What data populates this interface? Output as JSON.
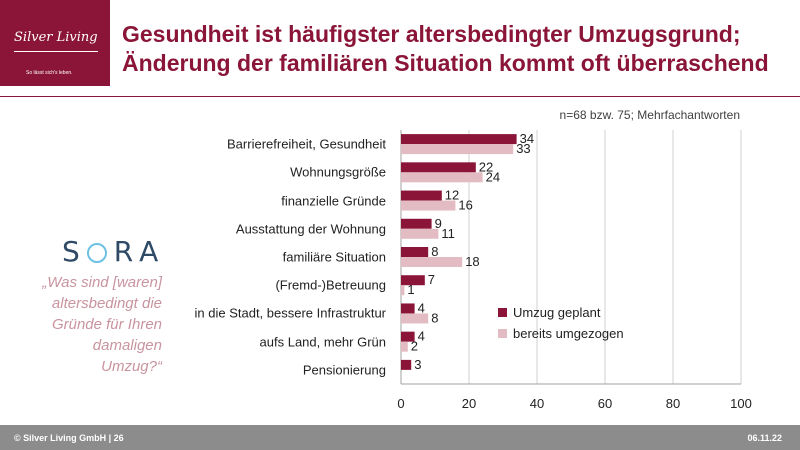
{
  "logo": {
    "brand": "Silver Living",
    "tagline": "So lässt sich's leben.",
    "color": "#8a1538"
  },
  "title": {
    "line1": "Gesundheit ist häufigster altersbedingter Umzugsgrund;",
    "line2": "Änderung der familiären Situation kommt oft überraschend"
  },
  "sample_note": "n=68 bzw. 75; Mehrfachantworten",
  "sora": {
    "logo_text_s": "S",
    "logo_text_rest": "RA"
  },
  "question": "„Was sind [waren] altersbedingt die Gründe für Ihren damaligen Umzug?“",
  "chart_data": {
    "type": "bar",
    "orientation": "horizontal",
    "categories": [
      "Barrierefreiheit, Gesundheit",
      "Wohnungsgröße",
      "finanzielle Gründe",
      "Ausstattung der Wohnung",
      "familiäre Situation",
      "(Fremd-)Betreuung",
      "in die Stadt, bessere Infrastruktur",
      "aufs Land, mehr Grün",
      "Pensionierung"
    ],
    "series": [
      {
        "name": "Umzug geplant",
        "color": "#8a1538",
        "values": [
          34,
          22,
          12,
          9,
          8,
          7,
          4,
          4,
          3
        ]
      },
      {
        "name": "bereits umgezogen",
        "color": "#e3bcc3",
        "values": [
          33,
          24,
          16,
          11,
          18,
          1,
          8,
          2,
          null
        ]
      }
    ],
    "xlim": [
      0,
      100
    ],
    "xticks": [
      0,
      20,
      40,
      60,
      80,
      100
    ],
    "grid": true,
    "legend_position": "right"
  },
  "footer": {
    "left": "© Silver Living GmbH | 26",
    "right": "06.11.22"
  }
}
